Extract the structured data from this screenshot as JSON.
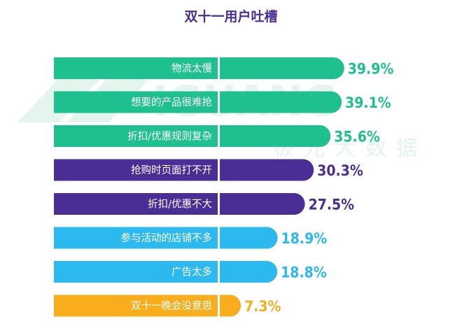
{
  "colors": {
    "green": "#1ec08f",
    "purple": "#4b2d96",
    "blue": "#2bb9f0",
    "orange": "#f7ad1c",
    "title": "#4b2d96",
    "watermark": "#e4f5ee"
  },
  "watermark": {
    "latin": "IGUANG",
    "cn": "极光大数据"
  },
  "chart_data": {
    "type": "bar",
    "orientation": "horizontal",
    "title": "双十一用户吐槽",
    "categories": [
      "物流太慢",
      "想要的产品很难抢",
      "折扣/优惠规则复杂",
      "抢购时页面打不开",
      "折扣/优惠不大",
      "参与活动的店铺不多",
      "广告太多",
      "双十一晚会没意思"
    ],
    "values": [
      39.9,
      39.1,
      35.6,
      30.3,
      27.5,
      18.9,
      18.8,
      7.3
    ],
    "value_labels": [
      "39.9%",
      "39.1%",
      "35.6%",
      "30.3%",
      "27.5%",
      "18.9%",
      "18.8%",
      "7.3%"
    ],
    "bar_colors": [
      "green",
      "green",
      "green",
      "purple",
      "purple",
      "blue",
      "blue",
      "orange"
    ],
    "xlim": [
      0,
      40
    ],
    "grid": false,
    "legend": "none"
  }
}
